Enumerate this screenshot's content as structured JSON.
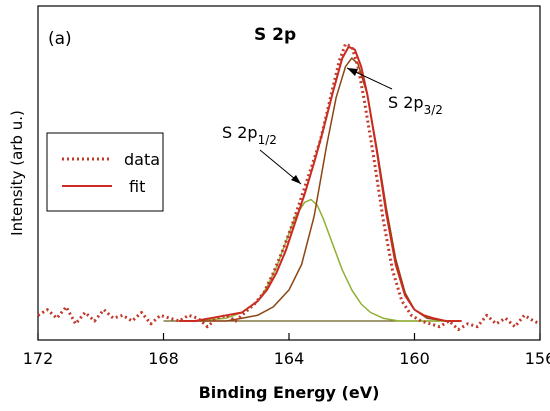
{
  "chart_data": {
    "type": "line",
    "panel_label": "(a)",
    "title": "S 2p",
    "xlabel": "Binding Energy (eV)",
    "ylabel": "Intensity (arb u.)",
    "xlim": [
      172,
      156
    ],
    "ylim": [
      0,
      1.06
    ],
    "x_reversed": true,
    "xticks": [
      172,
      168,
      164,
      160,
      156
    ],
    "xtick_labels": [
      "172",
      "168",
      "164",
      "160",
      "156"
    ],
    "grid": false,
    "legend": {
      "placement": "left",
      "entries": [
        {
          "label": "data",
          "style": "dotted",
          "color": "#c0392b"
        },
        {
          "label": "fit",
          "style": "solid",
          "color": "#cc2a1f"
        }
      ]
    },
    "annotations": [
      {
        "text": "S 2p",
        "sub": "1/2",
        "x": 163.5,
        "y": 0.44
      },
      {
        "text": "S 2p",
        "sub": "3/2",
        "x": 162.0,
        "y": 0.86
      }
    ],
    "series": [
      {
        "name": "data",
        "color": "#c0392b",
        "x": [
          172.0,
          171.7,
          171.4,
          171.1,
          170.8,
          170.5,
          170.2,
          169.9,
          169.6,
          169.3,
          169.0,
          168.7,
          168.4,
          168.1,
          167.8,
          167.5,
          167.2,
          166.9,
          166.6,
          166.3,
          166.0,
          165.7,
          165.4,
          165.1,
          164.8,
          164.5,
          164.2,
          163.9,
          163.6,
          163.3,
          163.0,
          162.7,
          162.4,
          162.2,
          162.0,
          161.8,
          161.6,
          161.3,
          161.0,
          160.7,
          160.4,
          160.1,
          159.8,
          159.5,
          159.2,
          158.9,
          158.6,
          158.3,
          158.0,
          157.7,
          157.4,
          157.1,
          156.8,
          156.5,
          156.2,
          156.0
        ],
        "y": [
          0.02,
          0.04,
          0.01,
          0.05,
          -0.01,
          0.03,
          0.0,
          0.04,
          0.01,
          0.02,
          0.0,
          0.03,
          -0.01,
          0.02,
          0.01,
          0.0,
          0.02,
          0.01,
          -0.02,
          0.01,
          0.02,
          0.0,
          0.03,
          0.06,
          0.1,
          0.17,
          0.25,
          0.34,
          0.44,
          0.54,
          0.64,
          0.78,
          0.92,
          0.98,
          0.97,
          0.9,
          0.78,
          0.58,
          0.36,
          0.18,
          0.07,
          0.02,
          0.0,
          -0.01,
          -0.02,
          0.0,
          -0.03,
          -0.01,
          -0.02,
          0.02,
          -0.01,
          0.01,
          -0.02,
          0.02,
          0.0,
          -0.01
        ]
      },
      {
        "name": "fit",
        "color": "#cc2a1f",
        "x": [
          167.5,
          167.0,
          166.5,
          166.0,
          165.5,
          165.0,
          164.7,
          164.4,
          164.1,
          163.8,
          163.5,
          163.2,
          162.9,
          162.6,
          162.3,
          162.1,
          161.9,
          161.7,
          161.5,
          161.2,
          160.9,
          160.6,
          160.3,
          160.0,
          159.7,
          159.4,
          159.0,
          158.5
        ],
        "y": [
          0.0,
          0.0,
          0.01,
          0.02,
          0.03,
          0.07,
          0.11,
          0.17,
          0.25,
          0.35,
          0.45,
          0.56,
          0.68,
          0.81,
          0.93,
          0.97,
          0.96,
          0.9,
          0.8,
          0.6,
          0.38,
          0.2,
          0.09,
          0.04,
          0.02,
          0.01,
          0.0,
          0.0
        ]
      },
      {
        "name": "S 2p1/2 component",
        "color": "#8fb030",
        "x": [
          167.0,
          166.0,
          165.5,
          165.0,
          164.7,
          164.4,
          164.1,
          163.8,
          163.5,
          163.3,
          163.1,
          162.9,
          162.6,
          162.3,
          162.0,
          161.7,
          161.4,
          161.0,
          160.5,
          160.0,
          159.0
        ],
        "y": [
          0.0,
          0.01,
          0.03,
          0.07,
          0.12,
          0.19,
          0.28,
          0.37,
          0.42,
          0.43,
          0.41,
          0.36,
          0.27,
          0.18,
          0.11,
          0.06,
          0.03,
          0.01,
          0.0,
          0.0,
          0.0
        ]
      },
      {
        "name": "S 2p3/2 component",
        "color": "#8b4513",
        "x": [
          167.0,
          166.0,
          165.5,
          165.0,
          164.5,
          164.0,
          163.6,
          163.2,
          162.8,
          162.5,
          162.2,
          162.0,
          161.8,
          161.5,
          161.2,
          160.9,
          160.6,
          160.3,
          160.0,
          159.6,
          159.0
        ],
        "y": [
          0.0,
          0.0,
          0.01,
          0.02,
          0.05,
          0.11,
          0.2,
          0.37,
          0.62,
          0.79,
          0.9,
          0.93,
          0.91,
          0.8,
          0.61,
          0.4,
          0.22,
          0.1,
          0.04,
          0.01,
          0.0
        ]
      },
      {
        "name": "background",
        "color": "#6b5a1e",
        "x": [
          168.0,
          164.0,
          162.0,
          160.0,
          158.5
        ],
        "y": [
          0.0,
          0.0,
          0.0,
          0.0,
          0.0
        ]
      }
    ]
  }
}
